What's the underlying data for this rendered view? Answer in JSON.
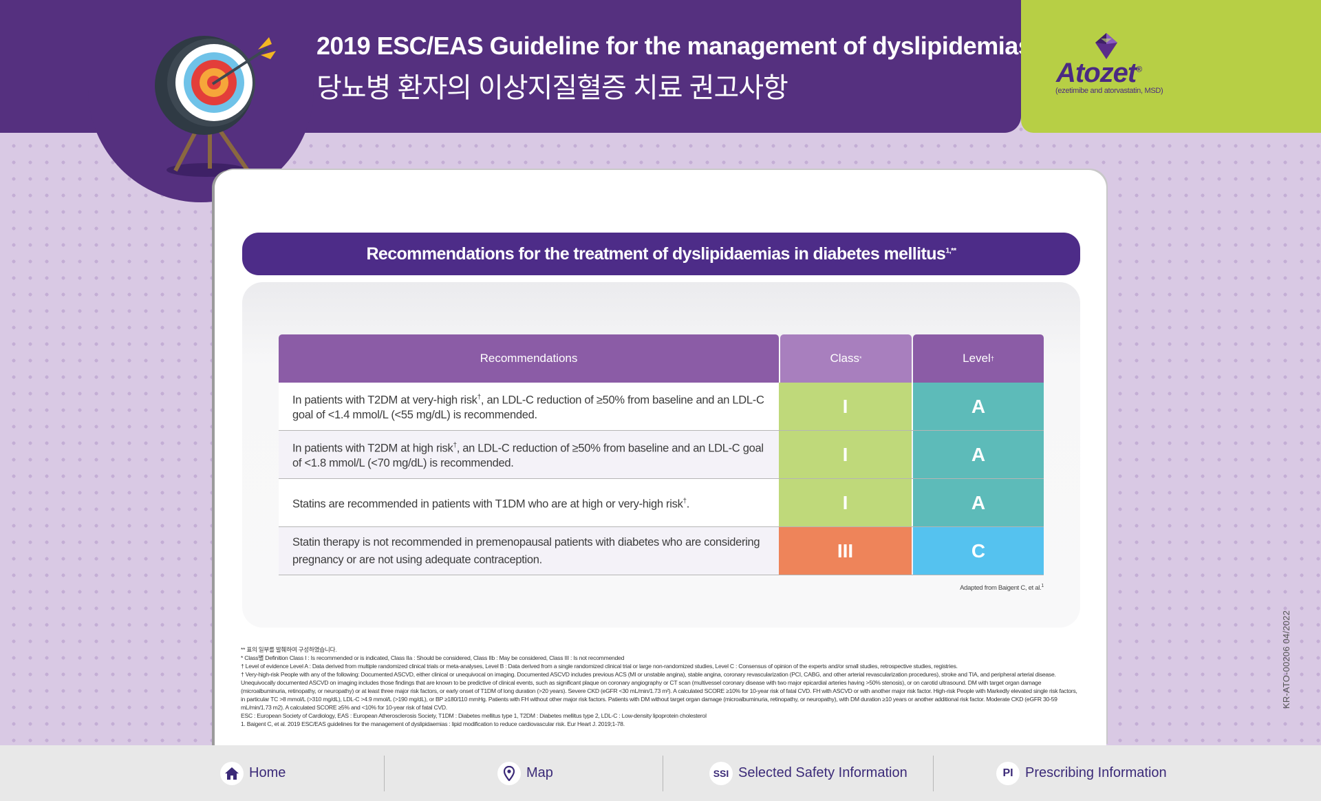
{
  "header": {
    "title_en": "2019 ESC/EAS Guideline for the management of dyslipidemias",
    "title_ko": "당뇨병 환자의 이상지질혈증 치료 권고사항"
  },
  "brand": {
    "name": "Atozet",
    "registered": "®",
    "subtitle": "(ezetimibe and atorvastatin, MSD)"
  },
  "section": {
    "title": "Recommendations for the treatment of dyslipidaemias in diabetes mellitus",
    "title_sup": "1,**"
  },
  "table": {
    "headers": {
      "recommendations": "Recommendations",
      "class": "Class",
      "class_sup": "*",
      "level": "Level",
      "level_sup": "†"
    },
    "rows": [
      {
        "text_a": "In patients with T2DM at very-high risk",
        "sup": "†",
        "text_b": ", an LDL-C reduction of ≥50% from baseline and an LDL-C goal of <1.4 mmol/L (<55 mg/dL) is recommended.",
        "class": "I",
        "level": "A"
      },
      {
        "text_a": "In patients with T2DM at high risk",
        "sup": "†",
        "text_b": ", an LDL-C reduction of ≥50% from baseline and an LDL-C goal of <1.8 mmol/L (<70 mg/dL) is recommended.",
        "class": "I",
        "level": "A"
      },
      {
        "text_a": "Statins are recommended in patients with T1DM who are at high or very-high risk",
        "sup": "†",
        "text_b": ".",
        "class": "I",
        "level": "A"
      },
      {
        "text_a": "Statin therapy is not recommended in premenopausal patients with diabetes who are considering pregnancy or are not using adequate contraception.",
        "sup": "",
        "text_b": "",
        "class": "III",
        "level": "C"
      }
    ],
    "adapted": "Adapted from Baigent C, et al.",
    "adapted_sup": "1"
  },
  "footnotes": {
    "note_ko": "** 표의 일부를 발췌하여 구성하였습니다.",
    "class_def": "* Class별 Definition Class I : Is recommended or is indicated, Class IIa : Should be considered, Class IIb : May be considered, Class III : Is not recommended",
    "level_def": "† Level of evidence Level A : Data derived from multiple randomized clinical trials or meta-analyses, Level B : Data derived from a single randomized clinical trial or large non-randomized studies, Level C : Consensus of opinion of the experts and/or small studies, retrospective studies, registries.",
    "risk_def": "† Very-high-risk People with any of the following: Documented ASCVD, either clinical or unequivocal on imaging. Documented ASCVD includes previous ACS (MI or unstable angina), stable angina, coronary revascularization (PCI, CABG, and other arterial revascularization procedures), stroke and TIA, and peripheral arterial disease. Unequivocally documented ASCVD on imaging includes those findings that are known to be predictive of clinical events, such as significant plaque on coronary angiography or CT scan (multivessel coronary disease with two major epicardial arteries having >50% stenosis), or on carotid ultrasound. DM with target organ damage (microalbuminuria, retinopathy, or neuropathy) or at least three major risk factors, or early onset of T1DM of long duration (>20 years). Severe CKD (eGFR <30 mL/min/1.73 m²). A calculated SCORE ≥10% for 10-year risk of fatal CVD. FH with ASCVD or with another major risk factor. High-risk People with Markedly elevated single risk factors, in particular TC >8 mmol/L (>310 mg/dL), LDL-C >4.9 mmol/L (>190 mg/dL), or BP ≥180/110 mmHg. Patients with FH without other major risk factors. Patients with DM without target organ damage (microalbuminuria, retinopathy, or neuropathy), with DM duration ≥10 years or another additional risk factor. Moderate CKD (eGFR 30-59 mL/min/1.73 m2). A calculated SCORE ≥5% and <10% for 10-year risk of fatal CVD.",
    "abbrev": "ESC : European Society of Cardiology, EAS : European Atherosclerosis Society, T1DM : Diabetes mellitus type 1, T2DM : Diabetes mellitus type 2, LDL-C : Low-density lipoprotein cholesterol",
    "ref": "1. Baigent C, et al. 2019 ESC/EAS guidelines for the management of dyslipidaemias : lipid modification to reduce cardiovascular risk. Eur Heart J. 2019;1-78."
  },
  "doc_code": "KR-ATO-00206 04/2022",
  "nav": {
    "home": {
      "label": "Home",
      "icon": "home-icon"
    },
    "map": {
      "label": "Map",
      "icon": "map-pin-icon"
    },
    "ssi": {
      "label": "Selected Safety Information",
      "badge": "SSI"
    },
    "pi": {
      "label": "Prescribing Information",
      "badge": "PI"
    }
  },
  "colors": {
    "header_purple": "#55307f",
    "brand_green": "#b7cf45",
    "class_I": "#bfd97a",
    "class_III": "#ee845a",
    "level_A": "#5dbbb9",
    "level_C": "#55c2ef",
    "table_head": "#8b5ca6"
  }
}
